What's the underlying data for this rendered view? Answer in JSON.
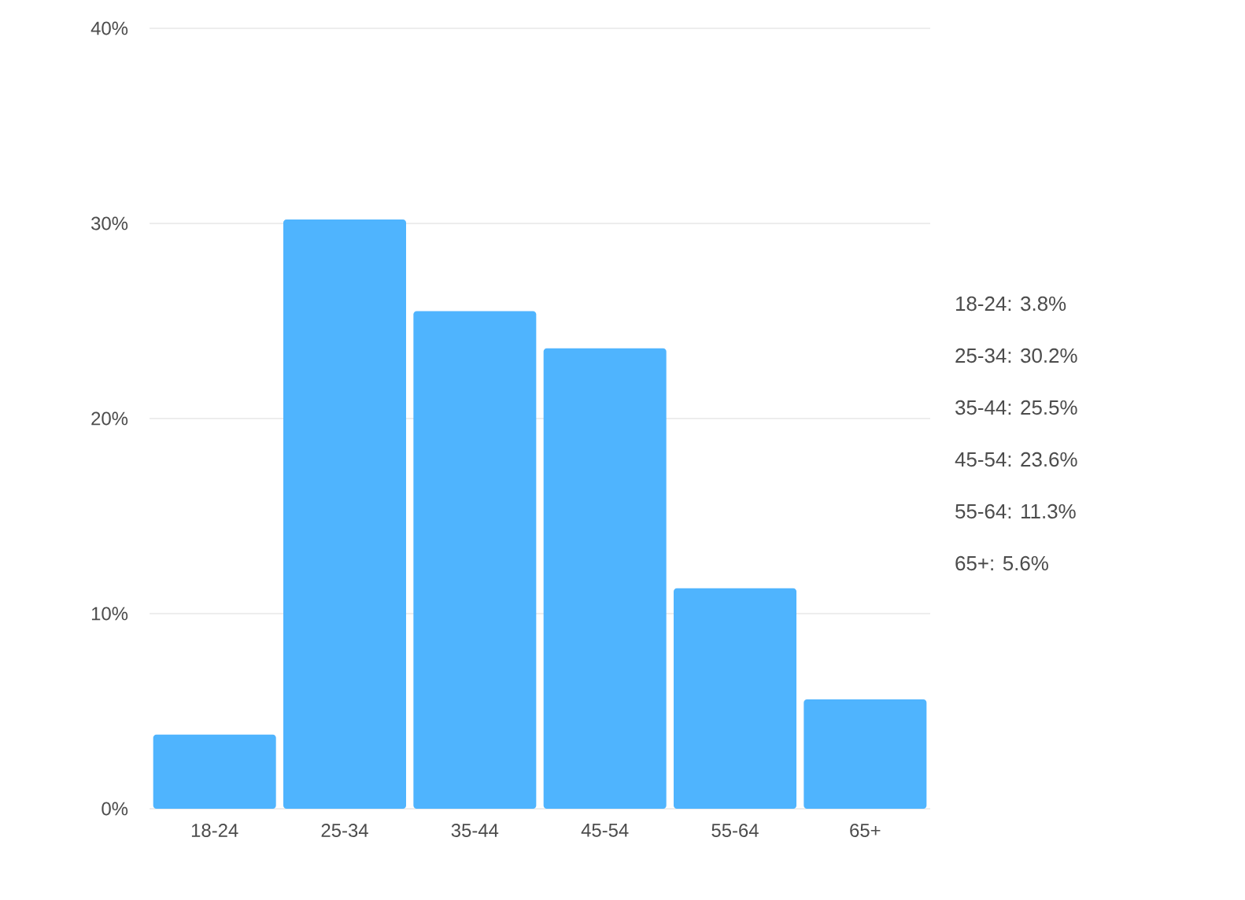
{
  "chart_data": {
    "type": "bar",
    "categories": [
      "18-24",
      "25-34",
      "35-44",
      "45-54",
      "55-64",
      "65+"
    ],
    "values": [
      3.8,
      30.2,
      25.5,
      23.6,
      11.3,
      5.6
    ],
    "color": "#4fb4fe",
    "ylim": [
      0,
      40
    ],
    "yticks": [
      {
        "value": 0,
        "label": "0%"
      },
      {
        "value": 10,
        "label": "10%"
      },
      {
        "value": 20,
        "label": "20%"
      },
      {
        "value": 30,
        "label": "30%"
      },
      {
        "value": 40,
        "label": "40%"
      }
    ],
    "grid": "y",
    "annotations": [
      "18-24: 3.8%",
      "25-34: 30.2%",
      "35-44: 25.5%",
      "45-54: 23.6%",
      "55-64: 11.3%",
      "65+: 5.6%"
    ]
  }
}
